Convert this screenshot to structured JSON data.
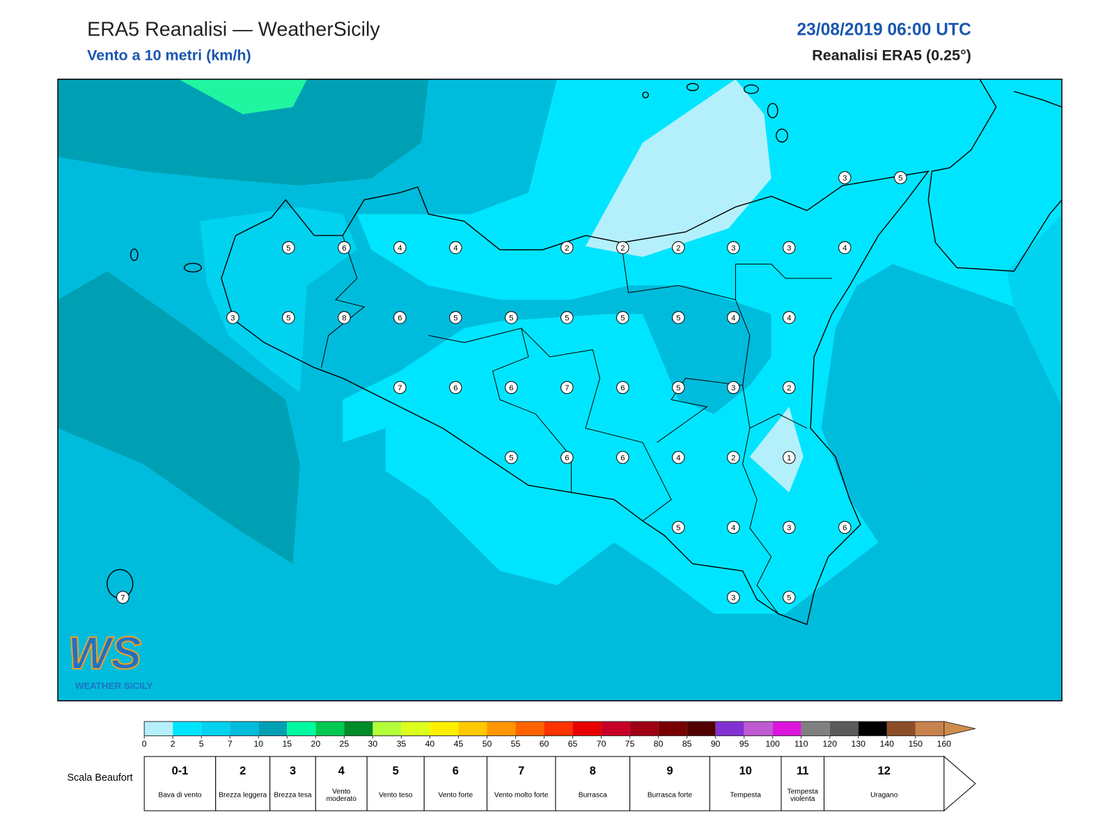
{
  "header": {
    "title": "ERA5 Reanalisi — WeatherSicily",
    "subtitle": "Vento a 10 metri (km/h)",
    "datetime": "23/08/2019 06:00 UTC",
    "source": "Reanalisi ERA5 (0.25°)"
  },
  "map": {
    "wind_points": [
      3,
      5,
      5,
      6,
      4,
      4,
      2,
      2,
      2,
      3,
      3,
      4,
      3,
      5,
      8,
      6,
      5,
      5,
      5,
      5,
      5,
      4,
      4,
      7,
      6,
      6,
      7,
      6,
      5,
      3,
      2,
      5,
      6,
      6,
      4,
      2,
      1,
      5,
      4,
      3,
      6,
      3,
      5,
      7
    ]
  },
  "logo": {
    "text": "WS",
    "subtitle": "WEATHER SICILY"
  },
  "colorbar": {
    "ticks": [
      0,
      2,
      5,
      7,
      10,
      15,
      20,
      25,
      30,
      35,
      40,
      45,
      50,
      55,
      60,
      65,
      70,
      75,
      80,
      85,
      90,
      95,
      100,
      110,
      120,
      130,
      140,
      150,
      160
    ],
    "colors": [
      "#b4f0fc",
      "#00e5ff",
      "#00d2f0",
      "#00bcdc",
      "#00a0b4",
      "#00faa0",
      "#00c850",
      "#008c28",
      "#b4ff3c",
      "#dcff1e",
      "#fff000",
      "#ffc800",
      "#ff9600",
      "#ff6400",
      "#ff3200",
      "#e60000",
      "#c80028",
      "#a00014",
      "#780000",
      "#500000",
      "#8232d2",
      "#be5ad2",
      "#dc14dc",
      "#808080",
      "#5a5a5a",
      "#000000",
      "#8c4c28",
      "#c8824c"
    ],
    "extend_color": "#d08c4c"
  },
  "beaufort": {
    "label": "Scala Beaufort",
    "levels": [
      {
        "force": "0-1",
        "name": "Bava di vento"
      },
      {
        "force": "2",
        "name": "Brezza leggera"
      },
      {
        "force": "3",
        "name": "Brezza tesa"
      },
      {
        "force": "4",
        "name": "Vento moderato"
      },
      {
        "force": "5",
        "name": "Vento teso"
      },
      {
        "force": "6",
        "name": "Vento forte"
      },
      {
        "force": "7",
        "name": "Vento molto forte"
      },
      {
        "force": "8",
        "name": "Burrasca"
      },
      {
        "force": "9",
        "name": "Burrasca forte"
      },
      {
        "force": "10",
        "name": "Tempesta"
      },
      {
        "force": "11",
        "name": "Tempesta violenta"
      },
      {
        "force": "12",
        "name": "Uragano"
      }
    ]
  }
}
